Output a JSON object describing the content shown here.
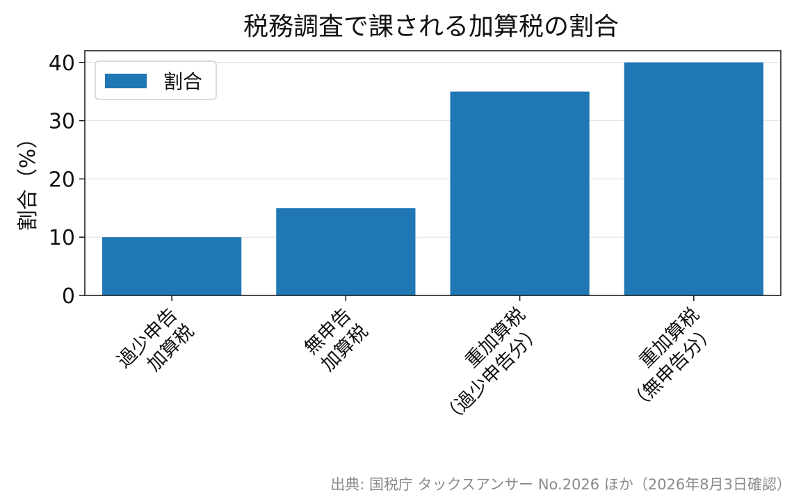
{
  "chart_data": {
    "type": "bar",
    "title": "税務調査で課される加算税の割合",
    "categories": [
      [
        "過少申告",
        "加算税"
      ],
      [
        "無申告",
        "加算税"
      ],
      [
        "重加算税",
        "（過少申告分）"
      ],
      [
        "重加算税",
        "（無申告分）"
      ]
    ],
    "series": [
      {
        "name": "割合",
        "values": [
          10,
          15,
          35,
          40
        ],
        "color": "#1f77b4"
      }
    ],
    "xlabel": "",
    "ylabel": "割合（%）",
    "ylim": [
      0,
      42
    ],
    "yticks": [
      0,
      10,
      20,
      30,
      40
    ],
    "grid": "horizontal",
    "legend": "top-left",
    "source": "出典: 国税庁 タックスアンサー No.2026 ほか（2026年8月3日確認）"
  }
}
